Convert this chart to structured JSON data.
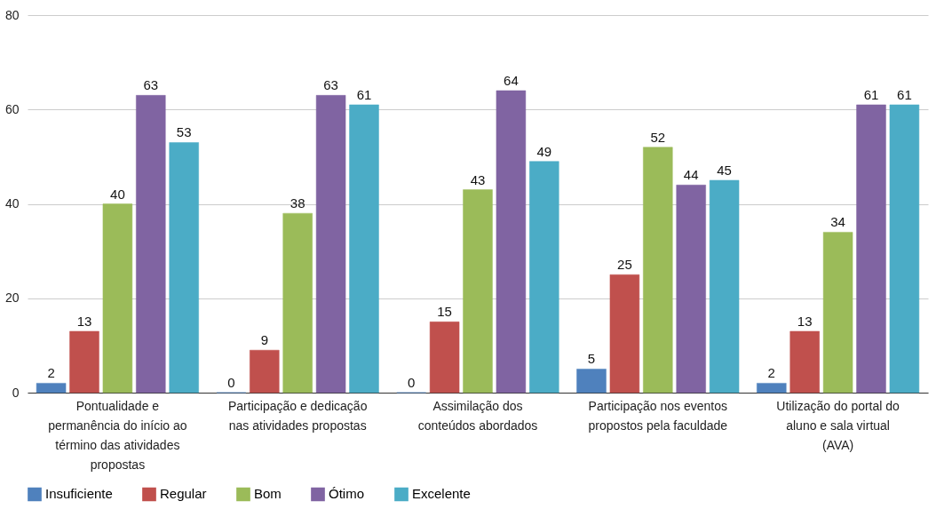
{
  "chart_data": {
    "type": "bar",
    "categories": [
      "Pontualidade e permanência do início ao término das atividades propostas",
      "Participação e dedicação nas atividades propostas",
      "Assimilação dos conteúdos abordados",
      "Participação nos eventos propostos pela faculdade",
      "Utilização do portal do aluno e sala virtual (AVA)"
    ],
    "series": [
      {
        "name": "Insuficiente",
        "color": "#4f81bd",
        "values": [
          2,
          0,
          0,
          5,
          2
        ]
      },
      {
        "name": "Regular",
        "color": "#c0504d",
        "values": [
          13,
          9,
          15,
          25,
          13
        ]
      },
      {
        "name": "Bom",
        "color": "#9bbb59",
        "values": [
          40,
          38,
          43,
          52,
          34
        ]
      },
      {
        "name": "Ótimo",
        "color": "#8064a2",
        "values": [
          63,
          63,
          64,
          44,
          61
        ]
      },
      {
        "name": "Excelente",
        "color": "#4bacc6",
        "values": [
          53,
          61,
          49,
          45,
          61
        ]
      }
    ],
    "ylim": [
      0,
      80
    ],
    "yticks": [
      0,
      20,
      40,
      60,
      80
    ],
    "grid": "y",
    "legend": "bottom",
    "data_labels": true
  }
}
